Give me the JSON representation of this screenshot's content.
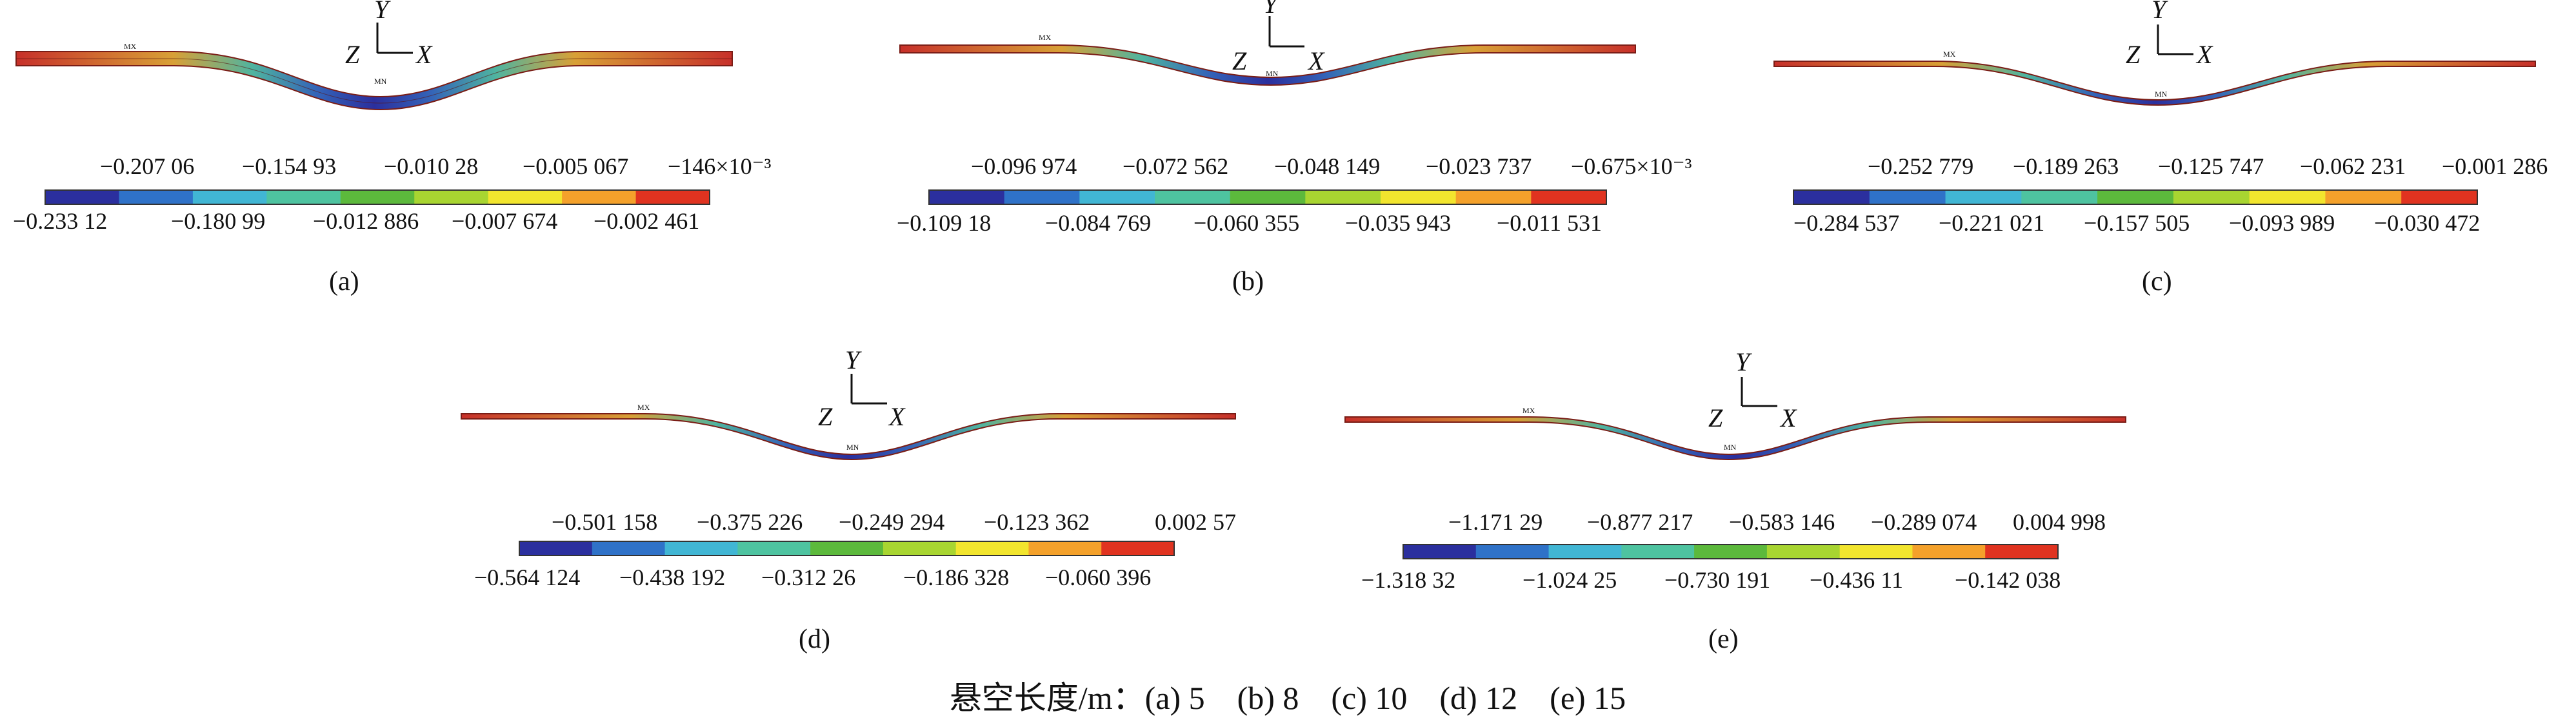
{
  "panels": [
    {
      "id": "a",
      "label": "(a)",
      "top_values": [
        "−0.207 06",
        "−0.154 93",
        "−0.010 28",
        "−0.005 067",
        "−146×10⁻³"
      ],
      "bottom_values": [
        "−0.233 12",
        "−0.180 99",
        "−0.012 886",
        "−0.007 674",
        "−0.002 461"
      ]
    },
    {
      "id": "b",
      "label": "(b)",
      "top_values": [
        "−0.096 974",
        "−0.072 562",
        "−0.048 149",
        "−0.023 737",
        "−0.675×10⁻³"
      ],
      "bottom_values": [
        "−0.109 18",
        "−0.084 769",
        "−0.060 355",
        "−0.035 943",
        "−0.011 531"
      ]
    },
    {
      "id": "c",
      "label": "(c)",
      "top_values": [
        "−0.252 779",
        "−0.189 263",
        "−0.125 747",
        "−0.062 231",
        "−0.001 286"
      ],
      "bottom_values": [
        "−0.284 537",
        "−0.221 021",
        "−0.157 505",
        "−0.093 989",
        "−0.030 472"
      ]
    },
    {
      "id": "d",
      "label": "(d)",
      "top_values": [
        "−0.501 158",
        "−0.375 226",
        "−0.249 294",
        "−0.123 362",
        "0.002 57"
      ],
      "bottom_values": [
        "−0.564 124",
        "−0.438 192",
        "−0.312 26",
        "−0.186 328",
        "−0.060 396"
      ]
    },
    {
      "id": "e",
      "label": "(e)",
      "top_values": [
        "−1.171 29",
        "−0.877 217",
        "−0.583 146",
        "−0.289 074",
        "0.004 998"
      ],
      "bottom_values": [
        "−1.318 32",
        "−1.024 25",
        "−0.730 191",
        "−0.436 11",
        "−0.142 038"
      ]
    }
  ],
  "axis_labels": {
    "x": "X",
    "y": "Y",
    "z": "Z"
  },
  "marker_labels": {
    "max": "MX",
    "min": "MN"
  },
  "colorbar_colors": [
    "#2b2f9e",
    "#2f72c8",
    "#41b6d4",
    "#4ec3a0",
    "#5cb93c",
    "#a8d531",
    "#f2e52e",
    "#f4a12b",
    "#e03320"
  ],
  "caption": "悬空长度/m：(a) 5　(b) 8　(c) 10　(d) 12　(e) 15"
}
